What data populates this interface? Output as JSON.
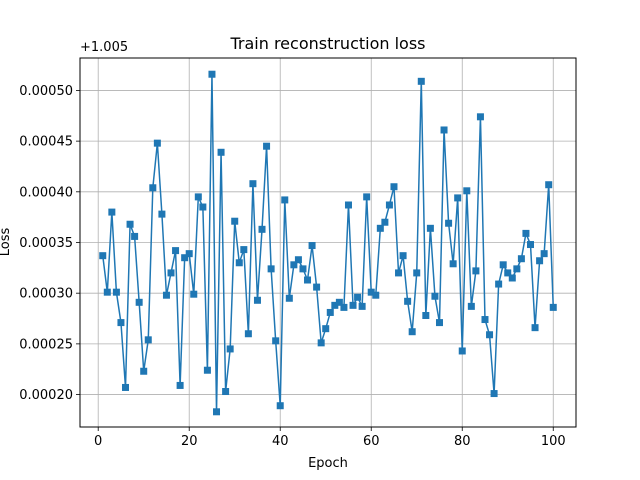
{
  "chart_data": {
    "type": "line",
    "title": "Train reconstruction loss",
    "xlabel": "Epoch",
    "ylabel": "Loss",
    "y_offset_label": "+1.005",
    "xlim": [
      -4,
      105
    ],
    "ylim": [
      0.000168,
      0.000532
    ],
    "x_ticks": [
      0,
      20,
      40,
      60,
      80,
      100
    ],
    "x_tick_labels": [
      "0",
      "20",
      "40",
      "60",
      "80",
      "100"
    ],
    "y_ticks": [
      0.0002,
      0.00025,
      0.0003,
      0.00035,
      0.0004,
      0.00045,
      0.0005
    ],
    "y_tick_labels": [
      "0.00020",
      "0.00025",
      "0.00030",
      "0.00035",
      "0.00040",
      "0.00045",
      "0.00050"
    ],
    "grid": true,
    "marker": "square",
    "colors": {
      "series": "#1f77b4",
      "grid": "#b0b0b0",
      "axes": "#000000"
    },
    "series": [
      {
        "x": [
          1,
          2,
          3,
          4,
          5,
          6,
          7,
          8,
          9,
          10,
          11,
          12,
          13,
          14,
          15,
          16,
          17,
          18,
          19,
          20,
          21,
          22,
          23,
          24,
          25,
          26,
          27,
          28,
          29,
          30,
          31,
          32,
          33,
          34,
          35,
          36,
          37,
          38,
          39,
          40,
          41,
          42,
          43,
          44,
          45,
          46,
          47,
          48,
          49,
          50,
          51,
          52,
          53,
          54,
          55,
          56,
          57,
          58,
          59,
          60,
          61,
          62,
          63,
          64,
          65,
          66,
          67,
          68,
          69,
          70,
          71,
          72,
          73,
          74,
          75,
          76,
          77,
          78,
          79,
          80,
          81,
          82,
          83,
          84,
          85,
          86,
          87,
          88,
          89,
          90,
          91,
          92,
          93,
          94,
          95,
          96,
          97,
          98,
          99,
          100
        ],
        "y": [
          0.000337,
          0.000301,
          0.00038,
          0.000301,
          0.000271,
          0.000207,
          0.000368,
          0.000356,
          0.000291,
          0.000223,
          0.000254,
          0.000404,
          0.000448,
          0.000378,
          0.000298,
          0.00032,
          0.000342,
          0.000209,
          0.000335,
          0.000339,
          0.000299,
          0.000395,
          0.000385,
          0.000224,
          0.000516,
          0.000183,
          0.000439,
          0.000203,
          0.000245,
          0.000371,
          0.00033,
          0.000343,
          0.00026,
          0.000408,
          0.000293,
          0.000363,
          0.000445,
          0.000324,
          0.000253,
          0.000189,
          0.000392,
          0.000295,
          0.000328,
          0.000333,
          0.000324,
          0.000313,
          0.000347,
          0.000306,
          0.000251,
          0.000265,
          0.000281,
          0.000288,
          0.000291,
          0.000286,
          0.000387,
          0.000288,
          0.000296,
          0.000287,
          0.000395,
          0.000301,
          0.000298,
          0.000364,
          0.00037,
          0.000387,
          0.000405,
          0.00032,
          0.000337,
          0.000292,
          0.000262,
          0.00032,
          0.000509,
          0.000278,
          0.000364,
          0.000297,
          0.000271,
          0.000461,
          0.000369,
          0.000329,
          0.000394,
          0.000243,
          0.000401,
          0.000287,
          0.000322,
          0.000474,
          0.000274,
          0.000259,
          0.000201,
          0.000309,
          0.000328,
          0.00032,
          0.000315,
          0.000324,
          0.000334,
          0.000359,
          0.000348,
          0.000266,
          0.000332,
          0.000339,
          0.000407,
          0.000286
        ]
      }
    ]
  }
}
